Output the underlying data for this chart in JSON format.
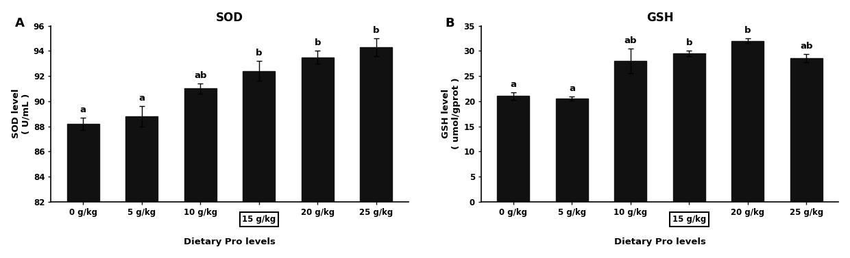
{
  "sod": {
    "title": "SOD",
    "ylabel": "SOD level\n( U/mL )",
    "xlabel": "Dietary Pro levels",
    "categories": [
      "0 g/kg",
      "5 g/kg",
      "10 g/kg",
      "15 g/kg",
      "20 g/kg",
      "25 g/kg"
    ],
    "values": [
      88.2,
      88.8,
      91.0,
      92.4,
      93.5,
      94.3
    ],
    "errors": [
      0.5,
      0.8,
      0.4,
      0.8,
      0.5,
      0.7
    ],
    "labels": [
      "a",
      "a",
      "ab",
      "b",
      "b",
      "b"
    ],
    "ylim": [
      82,
      96
    ],
    "yticks": [
      82,
      84,
      86,
      88,
      90,
      92,
      94,
      96
    ],
    "boxed_index": 3,
    "panel_label": "A"
  },
  "gsh": {
    "title": "GSH",
    "ylabel": "GSH level\n( umol/gprot )",
    "xlabel": "Dietary Pro levels",
    "categories": [
      "0 g/kg",
      "5 g/kg",
      "10 g/kg",
      "15 g/kg",
      "20 g/kg",
      "25 g/kg"
    ],
    "values": [
      21.0,
      20.5,
      28.0,
      29.5,
      32.0,
      28.5
    ],
    "errors": [
      0.7,
      0.4,
      2.5,
      0.5,
      0.5,
      0.8
    ],
    "labels": [
      "a",
      "a",
      "ab",
      "b",
      "b",
      "ab"
    ],
    "ylim": [
      0,
      35
    ],
    "yticks": [
      0,
      5,
      10,
      15,
      20,
      25,
      30,
      35
    ],
    "boxed_index": 3,
    "panel_label": "B"
  },
  "bar_color": "#111111",
  "bar_width": 0.55,
  "label_fontsize": 9.5,
  "title_fontsize": 12,
  "axis_label_fontsize": 9.5,
  "tick_fontsize": 8.5,
  "panel_label_fontsize": 13
}
